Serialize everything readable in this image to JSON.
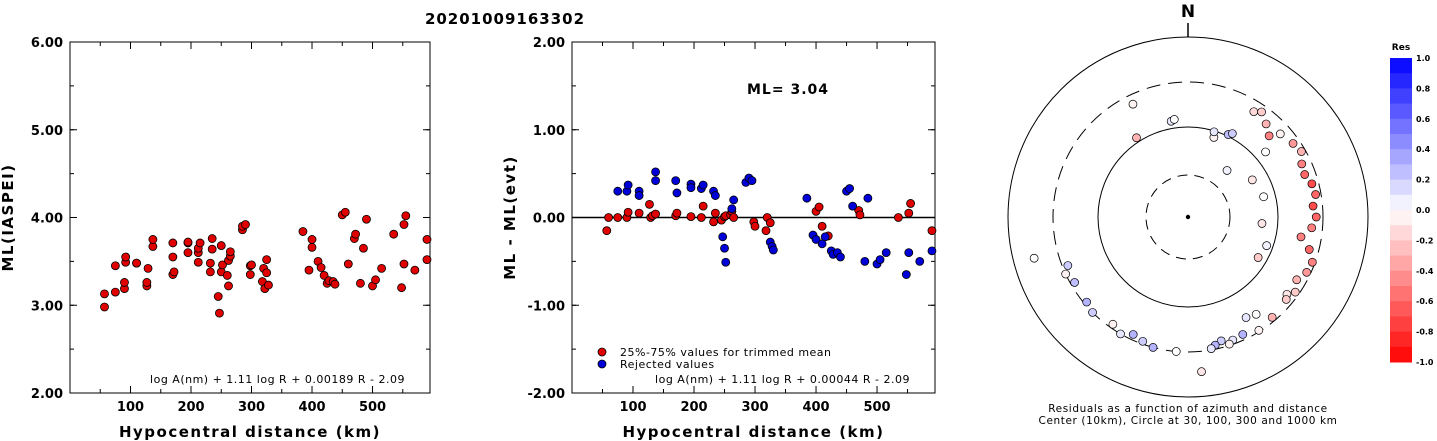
{
  "header": {
    "title": "20201009163302"
  },
  "chart_data": [
    {
      "type": "scatter",
      "id": "ml_vs_distance",
      "title": "",
      "xlabel": "Hypocentral distance (km)",
      "ylabel": "ML(IASPEI)",
      "xlim": [
        0,
        595
      ],
      "ylim": [
        2.0,
        6.0
      ],
      "xticks": [
        "100",
        "200",
        "300",
        "400",
        "500"
      ],
      "xtick_values": [
        100,
        200,
        300,
        400,
        500
      ],
      "yticks": [
        "2.00",
        "3.00",
        "4.00",
        "5.00",
        "6.00"
      ],
      "ytick_values": [
        2,
        3,
        4,
        5,
        6
      ],
      "formula": "log A(nm) + 1.11 log R + 0.00189 R - 2.09",
      "series": [
        {
          "color": "#e00000",
          "points": [
            [
              57,
              2.98
            ],
            [
              57,
              3.13
            ],
            [
              75,
              3.15
            ],
            [
              75,
              3.45
            ],
            [
              90,
              3.19
            ],
            [
              90,
              3.26
            ],
            [
              92,
              3.49
            ],
            [
              92,
              3.55
            ],
            [
              110,
              3.48
            ],
            [
              110,
              3.48
            ],
            [
              127,
              3.22
            ],
            [
              127,
              3.26
            ],
            [
              129,
              3.42
            ],
            [
              137,
              3.67
            ],
            [
              137,
              3.75
            ],
            [
              170,
              3.35
            ],
            [
              170,
              3.55
            ],
            [
              170,
              3.71
            ],
            [
              172,
              3.38
            ],
            [
              195,
              3.6
            ],
            [
              195,
              3.71
            ],
            [
              195,
              3.72
            ],
            [
              212,
              3.49
            ],
            [
              212,
              3.6
            ],
            [
              212,
              3.65
            ],
            [
              215,
              3.71
            ],
            [
              232,
              3.38
            ],
            [
              232,
              3.48
            ],
            [
              235,
              3.64
            ],
            [
              235,
              3.76
            ],
            [
              245,
              3.1
            ],
            [
              247,
              2.91
            ],
            [
              250,
              3.38
            ],
            [
              250,
              3.68
            ],
            [
              252,
              3.46
            ],
            [
              260,
              3.34
            ],
            [
              262,
              3.22
            ],
            [
              262,
              3.51
            ],
            [
              265,
              3.56
            ],
            [
              265,
              3.61
            ],
            [
              285,
              3.86
            ],
            [
              285,
              3.9
            ],
            [
              290,
              3.92
            ],
            [
              298,
              3.35
            ],
            [
              298,
              3.45
            ],
            [
              300,
              3.46
            ],
            [
              318,
              3.27
            ],
            [
              320,
              3.42
            ],
            [
              322,
              3.19
            ],
            [
              325,
              3.37
            ],
            [
              325,
              3.52
            ],
            [
              328,
              3.23
            ],
            [
              385,
              3.84
            ],
            [
              395,
              3.4
            ],
            [
              400,
              3.66
            ],
            [
              400,
              3.75
            ],
            [
              410,
              3.5
            ],
            [
              415,
              3.43
            ],
            [
              420,
              3.34
            ],
            [
              425,
              3.25
            ],
            [
              428,
              3.28
            ],
            [
              435,
              3.27
            ],
            [
              438,
              3.24
            ],
            [
              450,
              4.03
            ],
            [
              455,
              4.06
            ],
            [
              460,
              3.47
            ],
            [
              470,
              3.76
            ],
            [
              472,
              3.81
            ],
            [
              480,
              3.25
            ],
            [
              485,
              3.65
            ],
            [
              490,
              3.98
            ],
            [
              500,
              3.22
            ],
            [
              505,
              3.29
            ],
            [
              515,
              3.42
            ],
            [
              535,
              3.81
            ],
            [
              548,
              3.2
            ],
            [
              552,
              3.47
            ],
            [
              552,
              3.92
            ],
            [
              555,
              4.02
            ],
            [
              570,
              3.4
            ],
            [
              590,
              3.52
            ],
            [
              590,
              3.75
            ]
          ]
        }
      ]
    },
    {
      "type": "scatter",
      "id": "ml_residuals",
      "title": "",
      "xlabel": "Hypocentral distance (km)",
      "ylabel": "ML - ML(evt)",
      "xlim": [
        0,
        595
      ],
      "ylim": [
        -2.0,
        2.0
      ],
      "xticks": [
        "100",
        "200",
        "300",
        "400",
        "500"
      ],
      "xtick_values": [
        100,
        200,
        300,
        400,
        500
      ],
      "yticks": [
        "-2.00",
        "-1.00",
        "0.00",
        "1.00",
        "2.00"
      ],
      "ytick_values": [
        -2,
        -1,
        0,
        1,
        2
      ],
      "annotation": "ML= 3.04",
      "legend": [
        "25%-75% values for trimmed mean",
        "Rejected values"
      ],
      "formula": "log A(nm) + 1.11 log R + 0.00044 R - 2.09",
      "series": [
        {
          "name": "25%-75% values for trimmed mean",
          "color": "#e00000",
          "points": [
            [
              57,
              -0.15
            ],
            [
              60,
              0.0
            ],
            [
              75,
              0.0
            ],
            [
              90,
              0.0
            ],
            [
              92,
              0.06
            ],
            [
              110,
              0.05
            ],
            [
              127,
              0.15
            ],
            [
              129,
              0.0
            ],
            [
              132,
              0.02
            ],
            [
              137,
              0.04
            ],
            [
              170,
              0.02
            ],
            [
              172,
              0.05
            ],
            [
              195,
              0.01
            ],
            [
              212,
              0.0
            ],
            [
              215,
              0.13
            ],
            [
              232,
              -0.05
            ],
            [
              235,
              0.05
            ],
            [
              245,
              -0.03
            ],
            [
              250,
              0.01
            ],
            [
              252,
              0.02
            ],
            [
              260,
              0.03
            ],
            [
              262,
              0.07
            ],
            [
              265,
              0.0
            ],
            [
              298,
              -0.05
            ],
            [
              300,
              -0.1
            ],
            [
              318,
              -0.15
            ],
            [
              320,
              0.0
            ],
            [
              325,
              -0.06
            ],
            [
              400,
              0.07
            ],
            [
              405,
              0.12
            ],
            [
              410,
              -0.1
            ],
            [
              420,
              -0.21
            ],
            [
              470,
              0.08
            ],
            [
              472,
              0.03
            ],
            [
              535,
              0.0
            ],
            [
              552,
              0.05
            ],
            [
              555,
              0.16
            ],
            [
              590,
              -0.15
            ]
          ]
        },
        {
          "name": "Rejected values",
          "color": "#0000d8",
          "points": [
            [
              75,
              0.3
            ],
            [
              90,
              0.3
            ],
            [
              92,
              0.37
            ],
            [
              110,
              0.3
            ],
            [
              110,
              0.25
            ],
            [
              137,
              0.42
            ],
            [
              137,
              0.52
            ],
            [
              170,
              0.42
            ],
            [
              172,
              0.28
            ],
            [
              195,
              0.38
            ],
            [
              195,
              0.34
            ],
            [
              212,
              0.33
            ],
            [
              215,
              0.37
            ],
            [
              232,
              0.3
            ],
            [
              235,
              0.25
            ],
            [
              247,
              -0.22
            ],
            [
              250,
              -0.35
            ],
            [
              252,
              -0.51
            ],
            [
              262,
              0.1
            ],
            [
              265,
              0.2
            ],
            [
              285,
              0.4
            ],
            [
              290,
              0.45
            ],
            [
              295,
              0.42
            ],
            [
              325,
              -0.28
            ],
            [
              328,
              -0.33
            ],
            [
              330,
              -0.37
            ],
            [
              385,
              0.22
            ],
            [
              395,
              -0.2
            ],
            [
              400,
              -0.25
            ],
            [
              410,
              -0.3
            ],
            [
              415,
              -0.22
            ],
            [
              425,
              -0.38
            ],
            [
              428,
              -0.42
            ],
            [
              435,
              -0.4
            ],
            [
              440,
              -0.45
            ],
            [
              450,
              0.3
            ],
            [
              455,
              0.33
            ],
            [
              460,
              0.13
            ],
            [
              480,
              -0.5
            ],
            [
              485,
              0.22
            ],
            [
              500,
              -0.53
            ],
            [
              505,
              -0.48
            ],
            [
              515,
              -0.4
            ],
            [
              548,
              -0.65
            ],
            [
              552,
              -0.4
            ],
            [
              570,
              -0.5
            ],
            [
              590,
              -0.38
            ]
          ]
        }
      ]
    },
    {
      "type": "scatter",
      "id": "azimuth_residuals",
      "title": "N",
      "caption_line1": "Residuals as a function of azimuth and distance",
      "caption_line2": "Center (10km), Circle at 30, 100, 300 and 1000 km",
      "colorbar_title": "Res",
      "colorbar_labels": [
        "1.0",
        "0.8",
        "0.6",
        "0.4",
        "0.2",
        "0.0",
        "-0.2",
        "-0.4",
        "-0.6",
        "-0.8",
        "-1.0"
      ],
      "points_azimuth_radius_residual": [
        [
          -26,
          0.93,
          -0.05
        ],
        [
          -10,
          0.72,
          0.1
        ],
        [
          -8,
          0.73,
          0.0
        ],
        [
          26,
          0.68,
          0.25
        ],
        [
          28,
          0.7,
          0.2
        ],
        [
          -33,
          0.7,
          -0.3
        ],
        [
          18,
          0.62,
          -0.05
        ],
        [
          17,
          0.66,
          0.1
        ],
        [
          45,
          0.85,
          -0.5
        ],
        [
          40,
          0.9,
          -0.3
        ],
        [
          32,
          0.92,
          -0.15
        ],
        [
          35,
          0.95,
          -0.2
        ],
        [
          48,
          0.92,
          -0.05
        ],
        [
          55,
          0.95,
          -0.4
        ],
        [
          60,
          0.97,
          -0.3
        ],
        [
          65,
          0.93,
          -0.5
        ],
        [
          70,
          0.92,
          -0.6
        ],
        [
          75,
          0.95,
          -0.7
        ],
        [
          80,
          0.96,
          -0.6
        ],
        [
          85,
          0.93,
          -0.7
        ],
        [
          90,
          0.95,
          -0.6
        ],
        [
          95,
          0.92,
          -0.5
        ],
        [
          100,
          0.85,
          -0.5
        ],
        [
          105,
          0.93,
          -0.6
        ],
        [
          110,
          0.98,
          -0.5
        ],
        [
          115,
          0.97,
          -0.4
        ],
        [
          120,
          0.93,
          -0.3
        ],
        [
          125,
          0.97,
          -0.2
        ],
        [
          128,
          0.93,
          -0.1
        ],
        [
          130,
          0.95,
          -0.2
        ],
        [
          140,
          0.97,
          -0.3
        ],
        [
          145,
          0.88,
          0.0
        ],
        [
          148,
          0.99,
          -0.05
        ],
        [
          150,
          0.86,
          0.1
        ],
        [
          155,
          0.96,
          0.3
        ],
        [
          160,
          0.97,
          0.1
        ],
        [
          162,
          0.99,
          -0.05
        ],
        [
          165,
          0.95,
          0.2
        ],
        [
          168,
          0.97,
          0.3
        ],
        [
          170,
          0.99,
          0.1
        ],
        [
          175,
          1.15,
          -0.1
        ],
        [
          185,
          1.0,
          0.0
        ],
        [
          195,
          1.0,
          0.3
        ],
        [
          200,
          0.98,
          0.2
        ],
        [
          205,
          0.96,
          0.3
        ],
        [
          210,
          1.0,
          0.1
        ],
        [
          215,
          0.97,
          -0.05
        ],
        [
          225,
          1.0,
          0.2
        ],
        [
          230,
          0.98,
          0.3
        ],
        [
          240,
          0.97,
          0.25
        ],
        [
          245,
          1.0,
          -0.05
        ],
        [
          248,
          0.96,
          0.2
        ],
        [
          255,
          1.18,
          0.0
        ],
        [
          110,
          0.62,
          0.05
        ],
        [
          120,
          0.6,
          -0.2
        ],
        [
          95,
          0.55,
          -0.1
        ],
        [
          75,
          0.58,
          0.0
        ],
        [
          60,
          0.55,
          -0.1
        ],
        [
          40,
          0.45,
          0.05
        ],
        [
          50,
          0.75,
          0.0
        ]
      ]
    }
  ]
}
